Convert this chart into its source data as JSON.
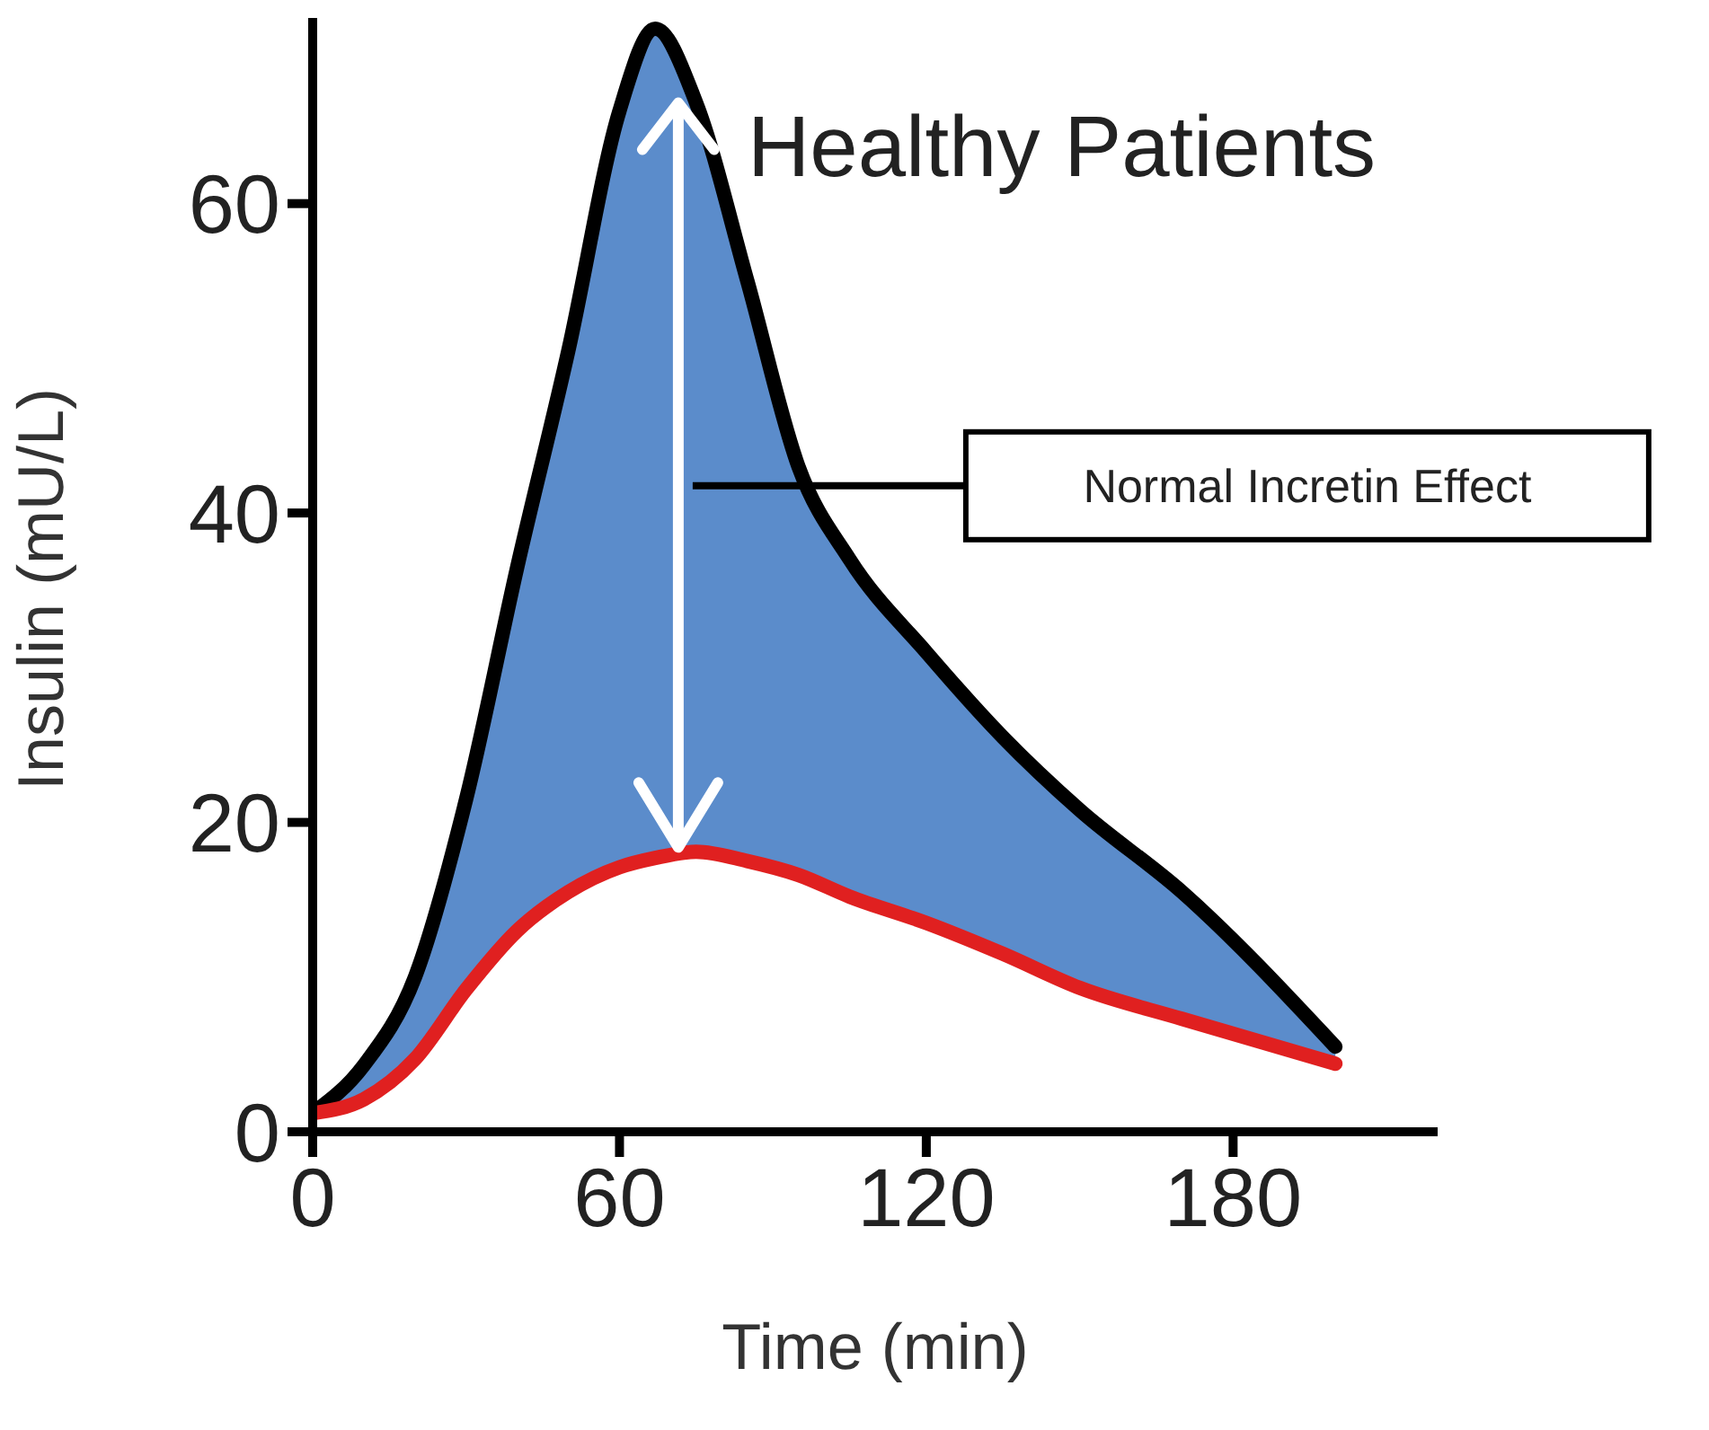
{
  "chart_data": {
    "type": "line",
    "xlabel": "Time (min)",
    "ylabel": "Insulin (mU/L)",
    "x": [
      0,
      10,
      20,
      30,
      40,
      50,
      60,
      67,
      75,
      85,
      95,
      105,
      120,
      135,
      150,
      170,
      200
    ],
    "xlim": [
      0,
      220
    ],
    "xticks": [
      0,
      60,
      120,
      180
    ],
    "ylim": [
      0,
      72
    ],
    "yticks": [
      0,
      20,
      40,
      60
    ],
    "series": [
      {
        "color": "#000000",
        "values": [
          1.2,
          4.3,
          10,
          21.5,
          36.5,
          50.5,
          66,
          71.3,
          66.5,
          55,
          43,
          37,
          31,
          25.5,
          20.8,
          15.5,
          5.5
        ],
        "lower": [
          1.2,
          2.1,
          4.7,
          9.2,
          13,
          15.5,
          17.1,
          17.7,
          18.1,
          17.5,
          16.6,
          15.2,
          13.5,
          11.5,
          9.3,
          7.3,
          4.4
        ],
        "upper": [
          1.2,
          4.3,
          10,
          21.5,
          36.5,
          50.5,
          66,
          71.3,
          66.5,
          55,
          43,
          37,
          31,
          25.5,
          20.8,
          15.5,
          5.5
        ]
      },
      {
        "color": "#e02020",
        "values": [
          1.2,
          2.1,
          4.7,
          9.2,
          13,
          15.5,
          17.1,
          17.7,
          18.1,
          17.5,
          16.6,
          15.2,
          13.5,
          11.5,
          9.3,
          7.3,
          4.4
        ]
      }
    ],
    "annotations": [
      "Healthy Patients",
      "Normal Incretin Effect"
    ],
    "marker": "none",
    "line_style": "solid"
  }
}
